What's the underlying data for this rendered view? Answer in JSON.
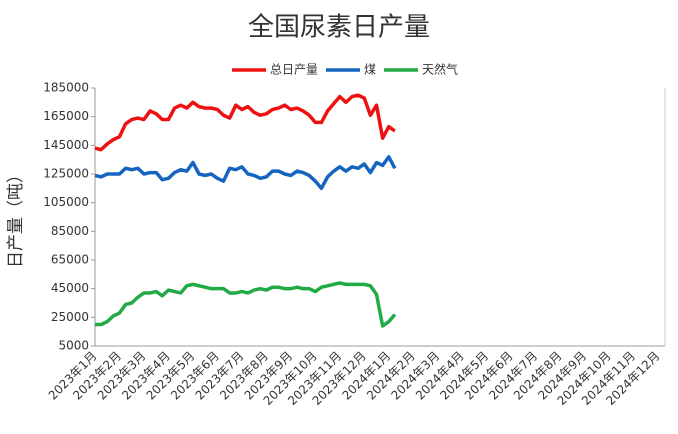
{
  "chart_data": {
    "type": "line",
    "title": "全国尿素日产量",
    "y_label": "日产量（吨）",
    "categories": [
      "2023年1月",
      null,
      null,
      null,
      "2023年2月",
      null,
      null,
      null,
      "2023年3月",
      null,
      null,
      null,
      "2023年4月",
      null,
      null,
      null,
      "2023年5月",
      null,
      null,
      null,
      "2023年6月",
      null,
      null,
      null,
      "2023年7月",
      null,
      null,
      null,
      "2023年8月",
      null,
      null,
      null,
      "2023年9月",
      null,
      null,
      null,
      "2023年10月",
      null,
      null,
      null,
      "2023年11月",
      null,
      null,
      null,
      "2023年12月",
      null,
      null,
      null,
      "2024年1月",
      null,
      null,
      null,
      "2024年2月",
      null,
      null,
      null,
      "2024年3月",
      null,
      null,
      null,
      "2024年4月",
      null,
      null,
      null,
      "2024年5月",
      null,
      null,
      null,
      "2024年6月",
      null,
      null,
      null,
      "2024年7月",
      null,
      null,
      null,
      "2024年8月",
      null,
      null,
      null,
      "2024年9月",
      null,
      null,
      null,
      "2024年10月",
      null,
      null,
      null,
      "2024年11月",
      null,
      null,
      null,
      "2024年12月",
      null,
      null,
      null
    ],
    "series": [
      {
        "name": "总日产量",
        "color": "#ee1111",
        "values": [
          143000,
          142000,
          146000,
          149000,
          151000,
          160000,
          163000,
          164000,
          163000,
          169000,
          167000,
          163000,
          163000,
          171000,
          173000,
          171000,
          175000,
          172000,
          171000,
          171000,
          170000,
          166000,
          164000,
          173000,
          170000,
          172000,
          168000,
          166000,
          167000,
          170000,
          171000,
          173000,
          170000,
          171000,
          169000,
          166000,
          161000,
          161000,
          169000,
          174000,
          179000,
          175000,
          179000,
          180000,
          178000,
          166000,
          173000,
          150000,
          158000,
          155000,
          null,
          null,
          null,
          null,
          null,
          null,
          null,
          null,
          null,
          null,
          null,
          null,
          null,
          null,
          null,
          null,
          null,
          null,
          null,
          null,
          null,
          null,
          null,
          null,
          null,
          null,
          null,
          null,
          null,
          null,
          null,
          null,
          null,
          null,
          null,
          null,
          null,
          null,
          null,
          null,
          null,
          null,
          null,
          null,
          null,
          null
        ]
      },
      {
        "name": "煤",
        "color": "#1565c0",
        "values": [
          124000,
          123000,
          125000,
          125000,
          125000,
          129000,
          128000,
          129000,
          125000,
          126000,
          126000,
          121000,
          122000,
          126000,
          128000,
          127000,
          133000,
          125000,
          124000,
          125000,
          122000,
          120000,
          129000,
          128000,
          130000,
          125000,
          124000,
          122000,
          123000,
          127000,
          127000,
          125000,
          124000,
          127000,
          126000,
          124000,
          120000,
          115000,
          123000,
          127000,
          130000,
          127000,
          130000,
          129000,
          132000,
          126000,
          133000,
          131000,
          137000,
          129000,
          null,
          null,
          null,
          null,
          null,
          null,
          null,
          null,
          null,
          null,
          null,
          null,
          null,
          null,
          null,
          null,
          null,
          null,
          null,
          null,
          null,
          null,
          null,
          null,
          null,
          null,
          null,
          null,
          null,
          null,
          null,
          null,
          null,
          null,
          null,
          null,
          null,
          null,
          null,
          null,
          null,
          null,
          null,
          null,
          null,
          null
        ]
      },
      {
        "name": "天然气",
        "color": "#22aa44",
        "values": [
          20000,
          20000,
          22000,
          26000,
          28000,
          34000,
          35000,
          39000,
          42000,
          42000,
          43000,
          40000,
          44000,
          43000,
          42000,
          47000,
          48000,
          47000,
          46000,
          45000,
          45000,
          45000,
          42000,
          42000,
          43000,
          42000,
          44000,
          45000,
          44000,
          46000,
          46000,
          45000,
          45000,
          46000,
          45000,
          45000,
          43000,
          46000,
          47000,
          48000,
          49000,
          48000,
          48000,
          48000,
          48000,
          47000,
          41000,
          19000,
          22000,
          27000,
          null,
          null,
          null,
          null,
          null,
          null,
          null,
          null,
          null,
          null,
          null,
          null,
          null,
          null,
          null,
          null,
          null,
          null,
          null,
          null,
          null,
          null,
          null,
          null,
          null,
          null,
          null,
          null,
          null,
          null,
          null,
          null,
          null,
          null,
          null,
          null,
          null,
          null,
          null,
          null,
          null,
          null,
          null,
          null,
          null,
          null
        ]
      }
    ],
    "ylim": [
      5000,
      185000
    ],
    "yticks": [
      5000,
      25000,
      45000,
      65000,
      85000,
      105000,
      125000,
      145000,
      165000,
      185000
    ],
    "grid": false,
    "legend": "top"
  }
}
